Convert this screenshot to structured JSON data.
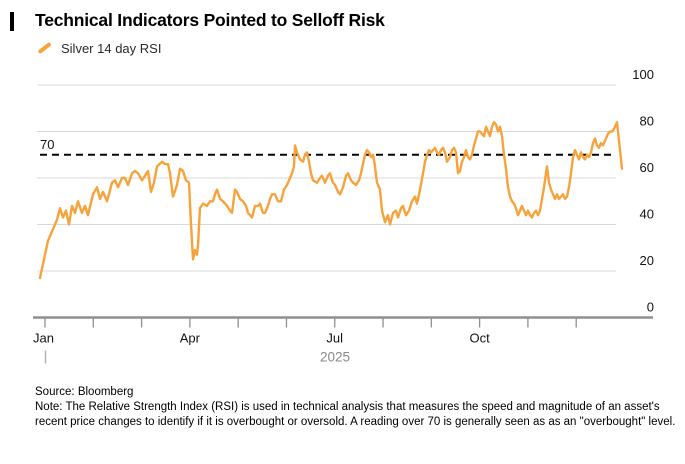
{
  "header": {
    "title": "Technical Indicators Pointed to Selloff Risk",
    "legend": {
      "label": "Silver 14 day RSI",
      "swatch_color": "#f7a23b"
    }
  },
  "chart_data": {
    "type": "line",
    "title": "Technical Indicators Pointed to Selloff Risk",
    "xlabel": "",
    "ylabel": "",
    "legend_position": "top-left",
    "grid": true,
    "y_axis": {
      "side": "right",
      "range": [
        0,
        100
      ],
      "ticks": [
        0,
        20,
        40,
        60,
        80,
        100
      ]
    },
    "x_axis": {
      "year": "2025",
      "month_count": 12,
      "labels": [
        {
          "text": "Jan",
          "month": 0,
          "align": "start"
        },
        {
          "text": "Apr",
          "month": 3,
          "align": "middle"
        },
        {
          "text": "Jul",
          "month": 6,
          "align": "middle"
        },
        {
          "text": "Oct",
          "month": 9,
          "align": "middle"
        }
      ]
    },
    "threshold": {
      "value": 70,
      "label": "70",
      "style": "dashed",
      "color": "#000000",
      "meaning": "overbought level"
    },
    "colors": {
      "series": "#f7a23b",
      "grid": "#d9d9d9",
      "baseline": "#8f8f8f",
      "axis_text": "#141414",
      "year_text": "#8a8a8a"
    },
    "series": [
      {
        "name": "Silver 14 day RSI",
        "color": "#f7a23b",
        "x_unit": "px-position Jan-Dec 2025 (plot 40..622)",
        "points": [
          [
            40,
            17
          ],
          [
            44,
            25
          ],
          [
            48,
            33
          ],
          [
            53,
            38
          ],
          [
            57,
            42
          ],
          [
            60,
            47
          ],
          [
            63,
            43
          ],
          [
            66,
            46
          ],
          [
            69,
            40
          ],
          [
            72,
            48
          ],
          [
            75,
            45
          ],
          [
            78,
            50
          ],
          [
            82,
            45
          ],
          [
            85,
            48
          ],
          [
            88,
            44
          ],
          [
            93,
            53
          ],
          [
            97,
            56
          ],
          [
            100,
            51
          ],
          [
            103,
            54
          ],
          [
            107,
            50
          ],
          [
            112,
            58
          ],
          [
            115,
            59
          ],
          [
            118,
            56
          ],
          [
            122,
            60
          ],
          [
            125,
            60
          ],
          [
            128,
            57
          ],
          [
            132,
            62
          ],
          [
            135,
            63
          ],
          [
            138,
            62
          ],
          [
            142,
            59
          ],
          [
            145,
            61
          ],
          [
            148,
            63
          ],
          [
            151,
            54
          ],
          [
            154,
            58
          ],
          [
            157,
            65
          ],
          [
            162,
            67
          ],
          [
            165,
            66
          ],
          [
            168,
            66
          ],
          [
            170,
            62
          ],
          [
            173,
            52
          ],
          [
            177,
            57
          ],
          [
            180,
            64
          ],
          [
            183,
            63
          ],
          [
            186,
            59
          ],
          [
            189,
            58
          ],
          [
            191,
            40
          ],
          [
            193,
            25
          ],
          [
            195,
            29
          ],
          [
            197,
            27
          ],
          [
            198,
            31
          ],
          [
            200,
            47
          ],
          [
            203,
            49
          ],
          [
            207,
            48
          ],
          [
            210,
            50
          ],
          [
            213,
            50
          ],
          [
            215,
            53
          ],
          [
            217,
            55
          ],
          [
            220,
            51
          ],
          [
            223,
            50
          ],
          [
            227,
            48
          ],
          [
            230,
            46
          ],
          [
            232,
            45
          ],
          [
            235,
            55
          ],
          [
            237,
            54
          ],
          [
            240,
            51
          ],
          [
            243,
            50
          ],
          [
            246,
            48
          ],
          [
            248,
            45
          ],
          [
            252,
            43
          ],
          [
            255,
            48
          ],
          [
            258,
            48
          ],
          [
            260,
            49
          ],
          [
            263,
            45
          ],
          [
            265,
            45
          ],
          [
            268,
            48
          ],
          [
            270,
            51
          ],
          [
            272,
            53
          ],
          [
            275,
            53
          ],
          [
            278,
            50
          ],
          [
            281,
            50
          ],
          [
            284,
            55
          ],
          [
            287,
            57
          ],
          [
            290,
            60
          ],
          [
            292,
            62
          ],
          [
            294,
            65
          ],
          [
            295,
            74
          ],
          [
            297,
            71
          ],
          [
            300,
            68
          ],
          [
            303,
            67
          ],
          [
            305,
            70
          ],
          [
            307,
            71
          ],
          [
            309,
            67
          ],
          [
            311,
            62
          ],
          [
            313,
            59
          ],
          [
            317,
            58
          ],
          [
            320,
            60
          ],
          [
            322,
            61
          ],
          [
            325,
            58
          ],
          [
            328,
            61
          ],
          [
            330,
            62
          ],
          [
            333,
            58
          ],
          [
            335,
            57
          ],
          [
            338,
            54
          ],
          [
            340,
            53
          ],
          [
            343,
            56
          ],
          [
            346,
            61
          ],
          [
            348,
            62
          ],
          [
            351,
            59
          ],
          [
            353,
            58
          ],
          [
            356,
            57
          ],
          [
            359,
            59
          ],
          [
            361,
            62
          ],
          [
            363,
            66
          ],
          [
            365,
            70
          ],
          [
            367,
            72
          ],
          [
            369,
            71
          ],
          [
            371,
            69
          ],
          [
            373,
            70
          ],
          [
            375,
            65
          ],
          [
            377,
            58
          ],
          [
            380,
            55
          ],
          [
            382,
            46
          ],
          [
            385,
            41
          ],
          [
            388,
            44
          ],
          [
            390,
            40
          ],
          [
            393,
            45
          ],
          [
            396,
            46
          ],
          [
            398,
            43
          ],
          [
            401,
            47
          ],
          [
            403,
            48
          ],
          [
            406,
            44
          ],
          [
            409,
            46
          ],
          [
            412,
            50
          ],
          [
            415,
            52
          ],
          [
            417,
            49
          ],
          [
            420,
            55
          ],
          [
            423,
            62
          ],
          [
            425,
            67
          ],
          [
            427,
            70
          ],
          [
            429,
            72
          ],
          [
            431,
            71
          ],
          [
            433,
            72
          ],
          [
            435,
            73
          ],
          [
            437,
            71
          ],
          [
            439,
            70
          ],
          [
            441,
            72
          ],
          [
            443,
            73
          ],
          [
            445,
            71
          ],
          [
            447,
            67
          ],
          [
            450,
            69
          ],
          [
            452,
            72
          ],
          [
            454,
            73
          ],
          [
            456,
            71
          ],
          [
            458,
            62
          ],
          [
            460,
            63
          ],
          [
            462,
            67
          ],
          [
            464,
            69
          ],
          [
            466,
            72
          ],
          [
            468,
            69
          ],
          [
            470,
            68
          ],
          [
            472,
            70
          ],
          [
            474,
            74
          ],
          [
            476,
            77
          ],
          [
            478,
            80
          ],
          [
            480,
            80
          ],
          [
            482,
            79
          ],
          [
            484,
            78
          ],
          [
            486,
            82
          ],
          [
            488,
            80
          ],
          [
            490,
            78
          ],
          [
            492,
            82
          ],
          [
            494,
            84
          ],
          [
            496,
            83
          ],
          [
            498,
            80
          ],
          [
            500,
            82
          ],
          [
            502,
            78
          ],
          [
            504,
            70
          ],
          [
            506,
            64
          ],
          [
            508,
            56
          ],
          [
            510,
            52
          ],
          [
            512,
            50
          ],
          [
            514,
            49
          ],
          [
            516,
            47
          ],
          [
            518,
            44
          ],
          [
            520,
            46
          ],
          [
            522,
            48
          ],
          [
            524,
            46
          ],
          [
            526,
            44
          ],
          [
            528,
            46
          ],
          [
            530,
            44
          ],
          [
            532,
            43
          ],
          [
            534,
            45
          ],
          [
            536,
            46
          ],
          [
            538,
            44
          ],
          [
            540,
            46
          ],
          [
            542,
            51
          ],
          [
            544,
            56
          ],
          [
            546,
            62
          ],
          [
            547,
            65
          ],
          [
            549,
            58
          ],
          [
            551,
            55
          ],
          [
            553,
            53
          ],
          [
            555,
            51
          ],
          [
            557,
            53
          ],
          [
            559,
            51
          ],
          [
            561,
            52
          ],
          [
            563,
            53
          ],
          [
            565,
            51
          ],
          [
            567,
            52
          ],
          [
            569,
            56
          ],
          [
            571,
            62
          ],
          [
            573,
            69
          ],
          [
            575,
            72
          ],
          [
            577,
            70
          ],
          [
            579,
            68
          ],
          [
            581,
            71
          ],
          [
            583,
            69
          ],
          [
            585,
            68
          ],
          [
            587,
            70
          ],
          [
            589,
            69
          ],
          [
            591,
            71
          ],
          [
            593,
            75
          ],
          [
            595,
            77
          ],
          [
            597,
            74
          ],
          [
            599,
            73
          ],
          [
            601,
            75
          ],
          [
            603,
            74
          ],
          [
            605,
            76
          ],
          [
            608,
            79
          ],
          [
            610,
            80
          ],
          [
            612,
            80
          ],
          [
            614,
            81
          ],
          [
            617,
            84
          ],
          [
            619,
            76
          ],
          [
            622,
            64
          ]
        ]
      }
    ]
  },
  "footer": {
    "source": "Source: Bloomberg",
    "note": "Note: The Relative Strength Index (RSI) is used in technical analysis that measures the speed and magnitude of an asset's recent price changes to identify if it is overbought or oversold. A reading over 70 is generally seen as as an \"overbought\" level."
  }
}
